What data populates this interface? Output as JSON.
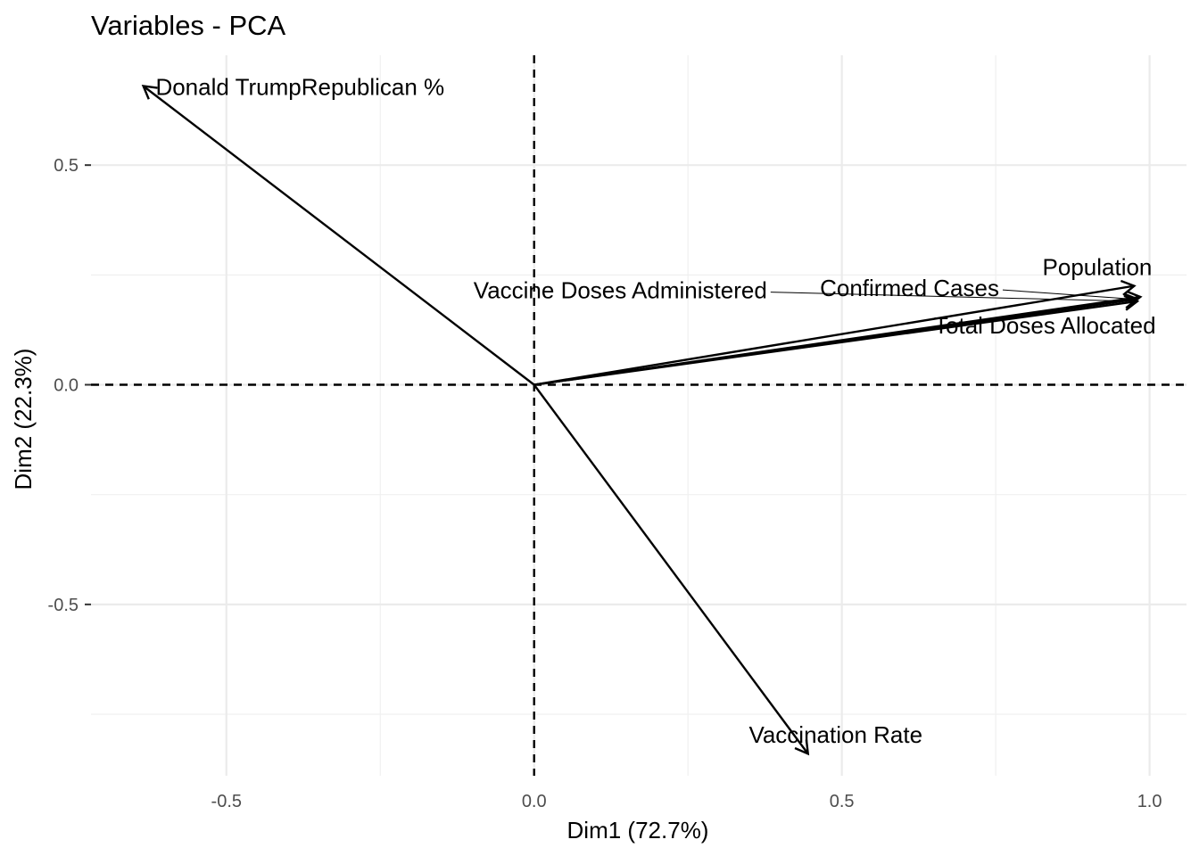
{
  "chart_data": {
    "type": "scatter",
    "subtype": "pca-variable-arrows",
    "title": "Variables - PCA",
    "xlabel": "Dim1 (72.7%)",
    "ylabel": "Dim2 (22.3%)",
    "xlim": [
      -0.72,
      1.06
    ],
    "ylim": [
      -0.89,
      0.75
    ],
    "x_ticks": [
      -0.5,
      0.0,
      0.5,
      1.0
    ],
    "x_tick_labels": [
      "-0.5",
      "0.0",
      "0.5",
      "1.0"
    ],
    "y_ticks": [
      -0.5,
      0.0,
      0.5
    ],
    "y_tick_labels": [
      "-0.5",
      "0.0",
      "0.5"
    ],
    "x_minor": [
      -0.25,
      0.25,
      0.75
    ],
    "y_minor": [
      -0.75,
      -0.25,
      0.25
    ],
    "grid": true,
    "reference_lines": {
      "x": 0,
      "y": 0,
      "style": "dashed"
    },
    "arrow_color": "#000000",
    "grid_color": "#ebebeb",
    "variables": [
      {
        "name": "Donald TrumpRepublican %",
        "x": -0.635,
        "y": 0.68,
        "label_x": -0.615,
        "label_y": 0.678,
        "anchor": "start",
        "leader": false
      },
      {
        "name": "Population",
        "x": 0.975,
        "y": 0.225,
        "label_x": 0.915,
        "label_y": 0.268,
        "anchor": "middle",
        "leader": false
      },
      {
        "name": "Confirmed Cases",
        "x": 0.98,
        "y": 0.195,
        "label_x": 0.61,
        "label_y": 0.22,
        "anchor": "middle",
        "leader": true
      },
      {
        "name": "Vaccine Doses Administered",
        "x": 0.98,
        "y": 0.19,
        "label_x": 0.14,
        "label_y": 0.215,
        "anchor": "middle",
        "leader": true
      },
      {
        "name": "Total Doses Allocated",
        "x": 0.985,
        "y": 0.2,
        "label_x": 0.83,
        "label_y": 0.135,
        "anchor": "middle",
        "leader": false
      },
      {
        "name": "Vaccination Rate",
        "x": 0.445,
        "y": -0.84,
        "label_x": 0.49,
        "label_y": -0.797,
        "anchor": "middle",
        "leader": false
      }
    ]
  }
}
